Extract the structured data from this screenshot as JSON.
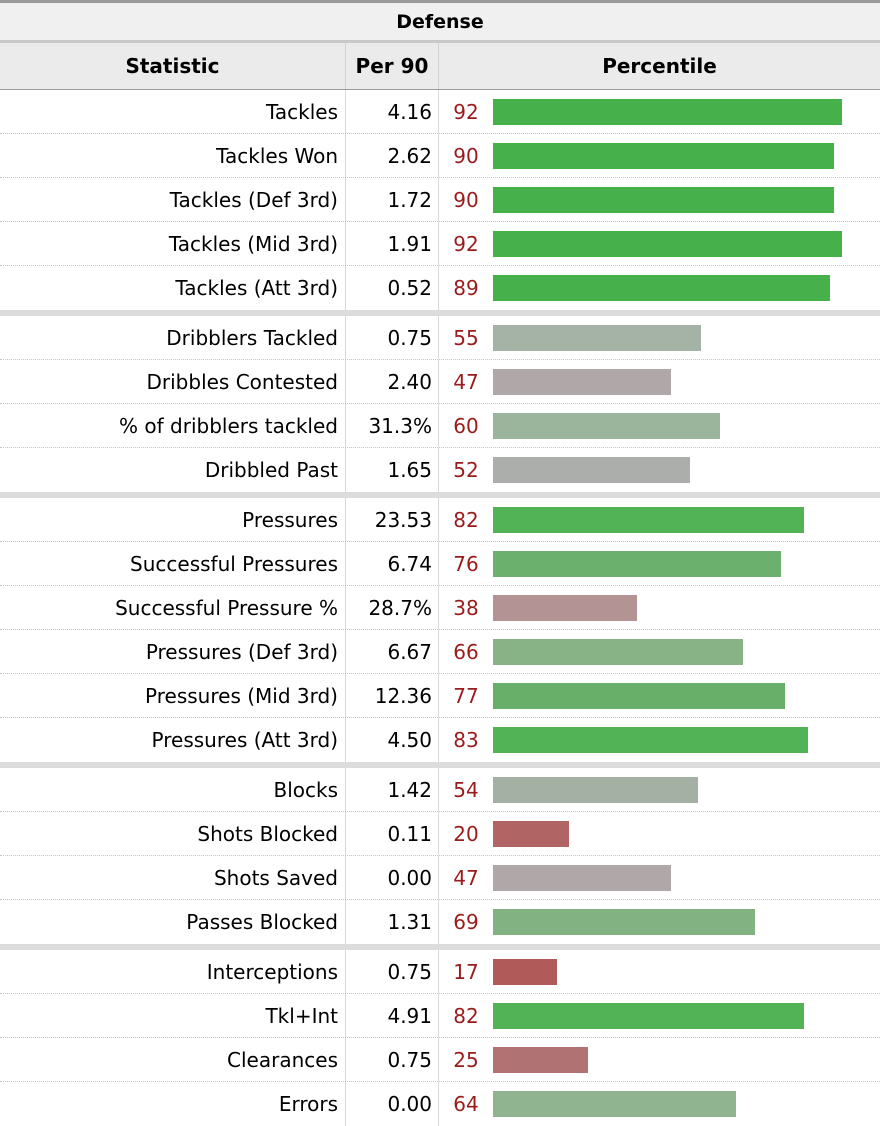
{
  "title": "Defense",
  "headers": {
    "statistic": "Statistic",
    "per90": "Per 90",
    "percentile": "Percentile"
  },
  "chart_data": {
    "type": "bar",
    "xlim": [
      0,
      100
    ],
    "groups": [
      [
        {
          "stat": "Tackles",
          "per90": "4.16",
          "percentile": 92,
          "color": "#46b04a"
        },
        {
          "stat": "Tackles Won",
          "per90": "2.62",
          "percentile": 90,
          "color": "#46b04a"
        },
        {
          "stat": "Tackles (Def 3rd)",
          "per90": "1.72",
          "percentile": 90,
          "color": "#46b04a"
        },
        {
          "stat": "Tackles (Mid 3rd)",
          "per90": "1.91",
          "percentile": 92,
          "color": "#46b04a"
        },
        {
          "stat": "Tackles (Att 3rd)",
          "per90": "0.52",
          "percentile": 89,
          "color": "#46b04a"
        }
      ],
      [
        {
          "stat": "Dribblers Tackled",
          "per90": "0.75",
          "percentile": 55,
          "color": "#a5b2a6"
        },
        {
          "stat": "Dribbles Contested",
          "per90": "2.40",
          "percentile": 47,
          "color": "#b0a8a8"
        },
        {
          "stat": "% of dribblers tackled",
          "per90": "31.3%",
          "percentile": 60,
          "color": "#9ab59b"
        },
        {
          "stat": "Dribbled Past",
          "per90": "1.65",
          "percentile": 52,
          "color": "#acaeab"
        }
      ],
      [
        {
          "stat": "Pressures",
          "per90": "23.53",
          "percentile": 82,
          "color": "#52b256"
        },
        {
          "stat": "Successful Pressures",
          "per90": "6.74",
          "percentile": 76,
          "color": "#6bb06d"
        },
        {
          "stat": "Successful Pressure %",
          "per90": "28.7%",
          "percentile": 38,
          "color": "#b39393"
        },
        {
          "stat": "Pressures (Def 3rd)",
          "per90": "6.67",
          "percentile": 66,
          "color": "#87b387"
        },
        {
          "stat": "Pressures (Mid 3rd)",
          "per90": "12.36",
          "percentile": 77,
          "color": "#68b06a"
        },
        {
          "stat": "Pressures (Att 3rd)",
          "per90": "4.50",
          "percentile": 83,
          "color": "#52b256"
        }
      ],
      [
        {
          "stat": "Blocks",
          "per90": "1.42",
          "percentile": 54,
          "color": "#a5b0a5"
        },
        {
          "stat": "Shots Blocked",
          "per90": "0.11",
          "percentile": 20,
          "color": "#b06464"
        },
        {
          "stat": "Shots Saved",
          "per90": "0.00",
          "percentile": 47,
          "color": "#b0a8a8"
        },
        {
          "stat": "Passes Blocked",
          "per90": "1.31",
          "percentile": 69,
          "color": "#82b282"
        }
      ],
      [
        {
          "stat": "Interceptions",
          "per90": "0.75",
          "percentile": 17,
          "color": "#b05a5a"
        },
        {
          "stat": "Tkl+Int",
          "per90": "4.91",
          "percentile": 82,
          "color": "#52b256"
        },
        {
          "stat": "Clearances",
          "per90": "0.75",
          "percentile": 25,
          "color": "#b07272"
        },
        {
          "stat": "Errors",
          "per90": "0.00",
          "percentile": 64,
          "color": "#8fb48f"
        }
      ]
    ]
  }
}
